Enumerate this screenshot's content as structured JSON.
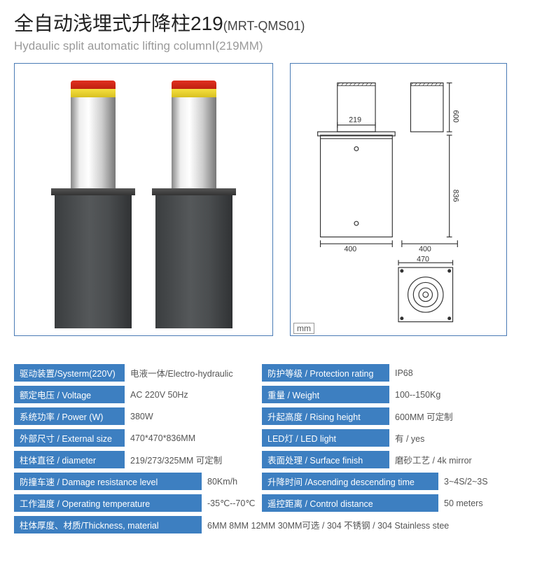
{
  "title": {
    "main": "全自动浅埋式升降柱219",
    "code": "(MRT-QMS01)",
    "subtitle": "Hydaulic split automatic lifting columnⅠ(219MM)"
  },
  "diagram": {
    "unit_label": "mm",
    "cylinder_width": "219",
    "cylinder_height": "600",
    "base_height": "836",
    "base_width_left": "400",
    "base_width_right": "400",
    "top_view_width": "470"
  },
  "specs": [
    [
      {
        "label": "驱动装置/Systerm(220V)",
        "value": "电液一体/Electro-hydraulic",
        "lw": "lw1",
        "vw": "vw1"
      },
      {
        "label": "防护等级 / Protection rating",
        "value": "IP68",
        "lw": "lw2",
        "vw": "vw2"
      }
    ],
    [
      {
        "label": "额定电压 / Voltage",
        "value": "AC 220V 50Hz",
        "lw": "lw1",
        "vw": "vw1"
      },
      {
        "label": "重量 / Weight",
        "value": "100--150Kg",
        "lw": "lw2",
        "vw": "vw2"
      }
    ],
    [
      {
        "label": "系统功率 / Power (W)",
        "value": "380W",
        "lw": "lw1",
        "vw": "vw1"
      },
      {
        "label": "升起高度 / Rising height",
        "value": "600MM 可定制",
        "lw": "lw2",
        "vw": "vw2"
      }
    ],
    [
      {
        "label": "外部尺寸 / External size",
        "value": "470*470*836MM",
        "lw": "lw1",
        "vw": "vw1"
      },
      {
        "label": "LED灯 / LED light",
        "value": "有 / yes",
        "lw": "lw2",
        "vw": "vw2"
      }
    ],
    [
      {
        "label": "柱体直径 / diameter",
        "value": "219/273/325MM 可定制",
        "lw": "lw1",
        "vw": "vw1"
      },
      {
        "label": "表面处理 / Surface finish",
        "value": "磨砂工艺 / 4k mirror",
        "lw": "lw2",
        "vw": "vw2"
      }
    ],
    [
      {
        "label": "防撞车速 / Damage resistance level",
        "value": "80Km/h",
        "lw": "lw-wide",
        "vw": "vw-small"
      },
      {
        "label": "升降时间 /Ascending descending time",
        "value": "3~4S/2~3S",
        "lw": "lw-asc",
        "vw": "vw-asc"
      }
    ],
    [
      {
        "label": "工作温度 / Operating temperature",
        "value": "-35℃--70℃",
        "lw": "lw-wide",
        "vw": "vw-small"
      },
      {
        "label": "遥控距离 / Control distance",
        "value": "50 meters",
        "lw": "lw-asc",
        "vw": "vw-asc"
      }
    ],
    [
      {
        "label": "柱体厚度、材质/Thickness, material",
        "value": "6MM 8MM 12MM 30MM可选 / 304 不锈钢 / 304 Stainless stee",
        "lw": "lw-full",
        "vw": "vw-full"
      }
    ]
  ],
  "colors": {
    "label_bg": "#3d7fc1",
    "label_fg": "#ffffff",
    "value_fg": "#555555",
    "border": "#4a7bb5"
  }
}
